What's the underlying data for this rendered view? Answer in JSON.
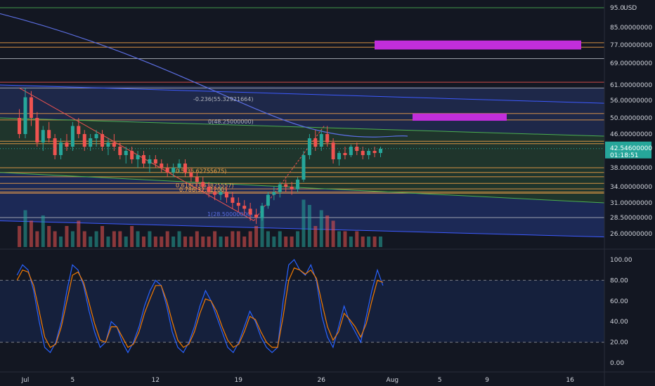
{
  "chart_data": [
    {
      "type": "candlestick",
      "currency": "USD",
      "x_ticks": [
        {
          "label": "Jul",
          "day": 1
        },
        {
          "label": "5",
          "day": 5
        },
        {
          "label": "12",
          "day": 12
        },
        {
          "label": "19",
          "day": 19
        },
        {
          "label": "26",
          "day": 26
        },
        {
          "label": "Aug",
          "day": 32
        },
        {
          "label": "5",
          "day": 36
        },
        {
          "label": "9",
          "day": 40
        },
        {
          "label": "16",
          "day": 47
        }
      ],
      "y_ticks": [
        {
          "label": "95.0",
          "value": 95
        },
        {
          "label": "85.00000000",
          "value": 85
        },
        {
          "label": "77.00000000",
          "value": 77
        },
        {
          "label": "69.00000000",
          "value": 69
        },
        {
          "label": "61.00000000",
          "value": 61
        },
        {
          "label": "56.00000000",
          "value": 56
        },
        {
          "label": "50.00000000",
          "value": 50
        },
        {
          "label": "46.00000000",
          "value": 46
        },
        {
          "label": "38.00000000",
          "value": 38
        },
        {
          "label": "34.00000000",
          "value": 34
        },
        {
          "label": "31.00000000",
          "value": 31
        },
        {
          "label": "28.50000000",
          "value": 28.5
        },
        {
          "label": "26.00000000",
          "value": 26
        }
      ],
      "last_price": {
        "value": 42.546,
        "label": "42.54600000",
        "countdown": "01:18:51",
        "color": "#26a69a"
      },
      "series": [
        {
          "type": "candlestick",
          "values": [
            [
              0.5,
              50,
              53,
              45,
              46
            ],
            [
              1.0,
              46,
              60,
              45,
              57
            ],
            [
              1.5,
              57,
              59,
              48,
              50
            ],
            [
              2.0,
              50,
              52,
              43,
              44
            ],
            [
              2.5,
              44,
              48,
              42,
              47
            ],
            [
              3.0,
              47,
              49,
              44,
              45
            ],
            [
              3.5,
              45,
              46,
              40,
              41
            ],
            [
              4.0,
              41,
              45,
              40,
              44
            ],
            [
              4.5,
              44,
              46,
              42,
              43
            ],
            [
              5.0,
              43,
              49,
              42,
              48
            ],
            [
              5.5,
              48,
              50,
              45,
              46
            ],
            [
              6.0,
              46,
              47,
              42,
              43
            ],
            [
              6.5,
              43,
              46,
              42,
              45
            ],
            [
              7.0,
              45,
              47,
              43,
              46
            ],
            [
              7.5,
              46,
              47,
              42,
              43
            ],
            [
              8.0,
              43,
              45,
              41,
              44
            ],
            [
              8.5,
              44,
              46,
              42,
              43
            ],
            [
              9.0,
              43,
              44,
              40,
              41
            ],
            [
              9.5,
              41,
              43,
              39,
              42
            ],
            [
              10.0,
              42,
              43,
              39,
              40
            ],
            [
              10.5,
              40,
              42,
              38,
              41
            ],
            [
              11.0,
              41,
              42,
              38,
              39
            ],
            [
              11.5,
              39,
              41,
              37,
              40
            ],
            [
              12.0,
              40,
              41,
              38,
              39
            ],
            [
              12.5,
              39,
              40,
              37,
              38
            ],
            [
              13.0,
              38,
              39,
              36,
              37
            ],
            [
              13.5,
              37,
              39,
              36,
              38
            ],
            [
              14.0,
              38,
              40,
              37,
              39
            ],
            [
              14.5,
              39,
              40,
              36,
              37
            ],
            [
              15.0,
              37,
              38,
              35,
              36
            ],
            [
              15.5,
              36,
              37,
              34,
              35
            ],
            [
              16.0,
              35,
              36,
              33,
              34
            ],
            [
              16.5,
              34,
              35,
              32,
              33
            ],
            [
              17.0,
              33,
              34,
              31.5,
              32.5
            ],
            [
              17.5,
              32.5,
              34,
              31.5,
              33
            ],
            [
              18.0,
              33,
              34,
              31,
              32
            ],
            [
              18.5,
              32,
              33,
              30,
              31
            ],
            [
              19.0,
              31,
              32,
              29.5,
              30.5
            ],
            [
              19.5,
              30.5,
              31.5,
              29,
              30
            ],
            [
              20.0,
              30,
              31,
              28,
              29
            ],
            [
              20.5,
              29,
              30,
              27.5,
              28.5
            ],
            [
              21.0,
              28.5,
              31,
              28,
              30.5
            ],
            [
              21.5,
              30.5,
              33,
              30,
              32.5
            ],
            [
              22.0,
              32.5,
              34,
              31.5,
              33
            ],
            [
              22.5,
              33,
              35,
              32,
              34.5
            ],
            [
              23.0,
              34.5,
              35.5,
              33,
              34
            ],
            [
              23.5,
              34,
              35,
              32.5,
              33.5
            ],
            [
              24.0,
              33.5,
              36,
              33,
              35.5
            ],
            [
              24.5,
              35.5,
              42,
              35,
              41
            ],
            [
              25.0,
              41,
              46,
              40,
              45
            ],
            [
              25.5,
              45,
              47,
              42,
              43
            ],
            [
              26.0,
              43,
              47,
              42,
              46
            ],
            [
              26.5,
              46,
              48,
              43,
              44
            ],
            [
              27.0,
              44,
              45,
              39,
              40
            ],
            [
              27.5,
              40,
              42,
              38.5,
              41.5
            ],
            [
              28.0,
              41.5,
              43,
              40,
              41
            ],
            [
              28.5,
              41,
              43.5,
              40.5,
              43
            ],
            [
              29.0,
              43,
              44,
              41,
              42
            ],
            [
              29.5,
              42,
              43,
              40,
              41
            ],
            [
              30.0,
              41,
              42.5,
              40,
              42
            ],
            [
              30.5,
              42,
              43,
              40.5,
              41.5
            ],
            [
              31.0,
              41.5,
              43,
              40.5,
              42.5
            ]
          ]
        },
        {
          "type": "volume",
          "values": [
            4,
            7,
            5,
            3,
            6,
            4,
            3,
            2,
            4,
            3,
            5,
            3,
            2,
            3,
            4,
            2,
            3,
            3,
            2,
            4,
            3,
            2,
            3,
            2,
            2,
            3,
            2,
            3,
            2,
            2,
            3,
            2,
            2,
            3,
            2,
            2,
            3,
            3,
            2,
            3,
            4,
            6,
            3,
            2,
            3,
            2,
            2,
            3,
            9,
            8,
            4,
            7,
            6,
            5,
            3,
            3,
            2,
            3,
            2,
            2,
            2,
            2
          ]
        },
        {
          "type": "line",
          "name": "%K",
          "color": "#2962ff",
          "values": [
            85,
            95,
            90,
            70,
            40,
            15,
            10,
            20,
            40,
            70,
            95,
            90,
            75,
            50,
            30,
            15,
            20,
            40,
            35,
            20,
            10,
            20,
            35,
            55,
            70,
            80,
            75,
            55,
            30,
            15,
            10,
            20,
            35,
            55,
            70,
            60,
            45,
            30,
            15,
            10,
            20,
            35,
            50,
            40,
            25,
            15,
            10,
            15,
            60,
            95,
            100,
            90,
            85,
            95,
            80,
            45,
            25,
            15,
            35,
            55,
            40,
            30,
            20,
            45,
            70,
            90,
            75
          ]
        },
        {
          "type": "line",
          "name": "%D",
          "color": "#f57c00",
          "values": [
            80,
            90,
            88,
            75,
            50,
            25,
            15,
            18,
            35,
            60,
            85,
            88,
            78,
            58,
            38,
            22,
            20,
            35,
            35,
            25,
            15,
            18,
            30,
            48,
            62,
            75,
            75,
            60,
            40,
            22,
            15,
            18,
            30,
            48,
            62,
            60,
            50,
            35,
            22,
            15,
            18,
            30,
            45,
            42,
            30,
            20,
            15,
            15,
            45,
            80,
            92,
            90,
            86,
            90,
            82,
            58,
            35,
            22,
            30,
            48,
            42,
            35,
            25,
            38,
            60,
            80,
            78
          ]
        }
      ],
      "annotations": [
        {
          "text": "-0.236(55.32921664)",
          "value": 55.32921664
        },
        {
          "text": "0(48.25000000)",
          "value": 48.25
        },
        {
          "text": "0.5(36.62755675)",
          "value": 36.62755675
        },
        {
          "text": "0.618(33.63825557)",
          "value": 33.63825557
        },
        {
          "text": "0.786(32.81200)",
          "value": 32.812
        },
        {
          "text": "1(28.50000000)",
          "value": 28.5
        }
      ],
      "colors": {
        "up": "#26a69a",
        "down": "#ef5350",
        "orange": "#f7a54a",
        "purple": "#c12edb",
        "blue": "#3d5afe",
        "green": "#4caf50",
        "ma": "#5b6ee1"
      }
    },
    {
      "type": "line",
      "y_ticks": [
        {
          "label": "100.00",
          "value": 100
        },
        {
          "label": "80.00",
          "value": 80
        },
        {
          "label": "60.00",
          "value": 60
        },
        {
          "label": "40.00",
          "value": 40
        },
        {
          "label": "20.00",
          "value": 20
        },
        {
          "label": "0.00",
          "value": 0
        }
      ],
      "bands": [
        20,
        80
      ]
    }
  ]
}
